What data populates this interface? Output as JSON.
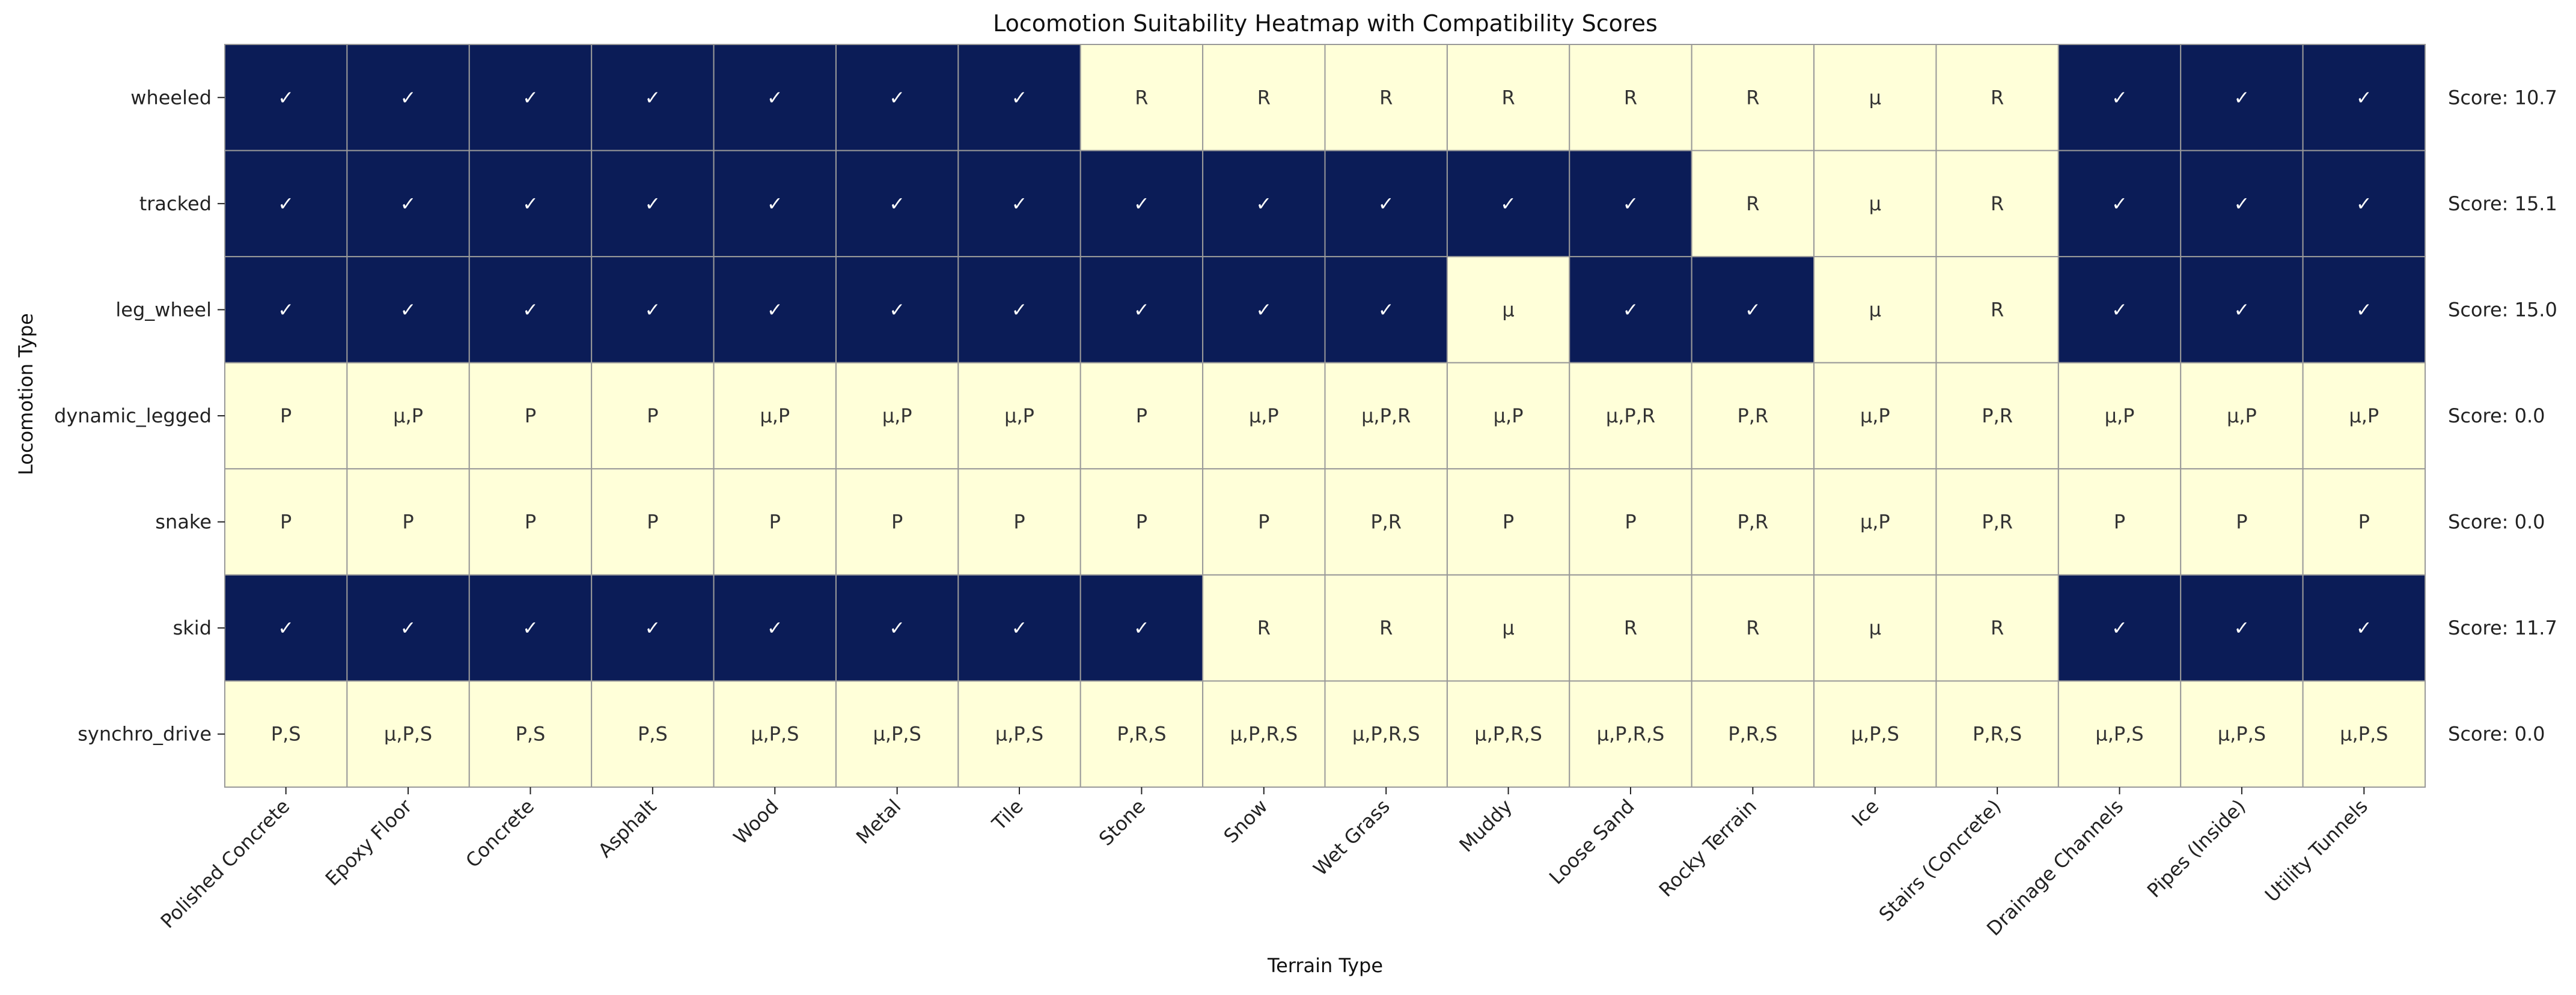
{
  "chart_data": {
    "type": "heatmap",
    "title": "Locomotion Suitability Heatmap with Compatibility Scores",
    "xlabel": "Terrain Type",
    "ylabel": "Locomotion Type",
    "x_categories": [
      "Polished Concrete",
      "Epoxy Floor",
      "Concrete",
      "Asphalt",
      "Wood",
      "Metal",
      "Tile",
      "Stone",
      "Snow",
      "Wet Grass",
      "Muddy",
      "Loose Sand",
      "Rocky Terrain",
      "Ice",
      "Stairs (Concrete)",
      "Drainage Channels",
      "Pipes (Inside)",
      "Utility Tunnels"
    ],
    "y_categories": [
      "wheeled",
      "tracked",
      "leg_wheel",
      "dynamic_legged",
      "snake",
      "skid",
      "synchro_drive"
    ],
    "cells": [
      [
        "✓",
        "✓",
        "✓",
        "✓",
        "✓",
        "✓",
        "✓",
        "R",
        "R",
        "R",
        "R",
        "R",
        "R",
        "μ",
        "R",
        "✓",
        "✓",
        "✓"
      ],
      [
        "✓",
        "✓",
        "✓",
        "✓",
        "✓",
        "✓",
        "✓",
        "✓",
        "✓",
        "✓",
        "✓",
        "✓",
        "R",
        "μ",
        "R",
        "✓",
        "✓",
        "✓"
      ],
      [
        "✓",
        "✓",
        "✓",
        "✓",
        "✓",
        "✓",
        "✓",
        "✓",
        "✓",
        "✓",
        "μ",
        "✓",
        "✓",
        "μ",
        "R",
        "✓",
        "✓",
        "✓"
      ],
      [
        "P",
        "μ,P",
        "P",
        "P",
        "μ,P",
        "μ,P",
        "μ,P",
        "P",
        "μ,P",
        "μ,P,R",
        "μ,P",
        "μ,P,R",
        "P,R",
        "μ,P",
        "P,R",
        "μ,P",
        "μ,P",
        "μ,P"
      ],
      [
        "P",
        "P",
        "P",
        "P",
        "P",
        "P",
        "P",
        "P",
        "P",
        "P,R",
        "P",
        "P",
        "P,R",
        "μ,P",
        "P,R",
        "P",
        "P",
        "P"
      ],
      [
        "✓",
        "✓",
        "✓",
        "✓",
        "✓",
        "✓",
        "✓",
        "✓",
        "R",
        "R",
        "μ",
        "R",
        "R",
        "μ",
        "R",
        "✓",
        "✓",
        "✓"
      ],
      [
        "P,S",
        "μ,P,S",
        "P,S",
        "P,S",
        "μ,P,S",
        "μ,P,S",
        "μ,P,S",
        "P,R,S",
        "μ,P,R,S",
        "μ,P,R,S",
        "μ,P,R,S",
        "μ,P,R,S",
        "P,R,S",
        "μ,P,S",
        "P,R,S",
        "μ,P,S",
        "μ,P,S",
        "μ,P,S"
      ]
    ],
    "scores": [
      "Score: 10.7",
      "Score: 15.1",
      "Score: 15.0",
      "Score: 0.0",
      "Score: 0.0",
      "Score: 11.7",
      "Score: 0.0"
    ],
    "colors": {
      "suitable": "#0b1c57",
      "unsuitable": "#ffffd9",
      "suitable_text": "#ffffff",
      "unsuitable_text": "#333333",
      "grid": "#999999"
    }
  }
}
